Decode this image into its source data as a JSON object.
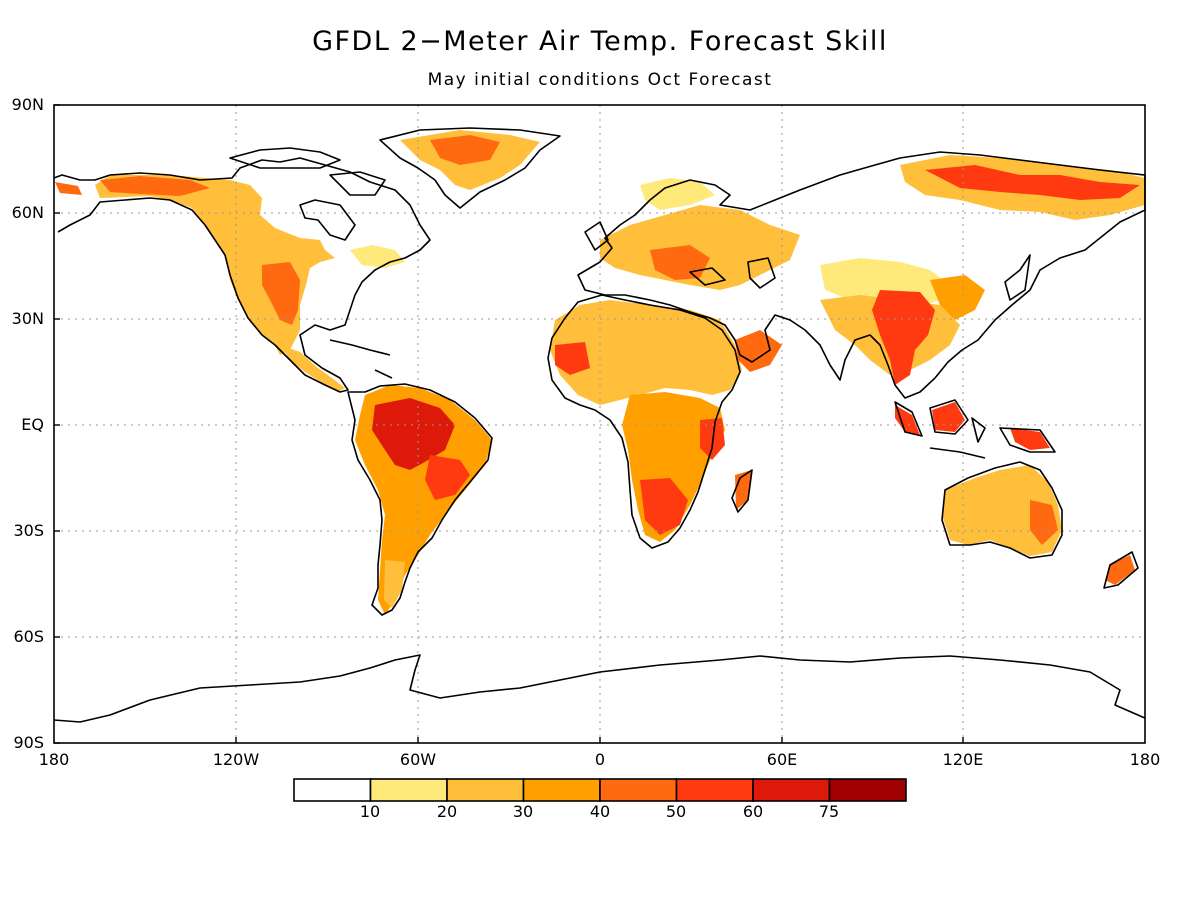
{
  "title": "GFDL 2−Meter Air Temp. Forecast Skill",
  "subtitle": "May initial conditions  Oct Forecast",
  "y_axis": {
    "ticks": [
      "90N",
      "60N",
      "30N",
      "EQ",
      "30S",
      "60S",
      "90S"
    ]
  },
  "x_axis": {
    "ticks": [
      "180",
      "120W",
      "60W",
      "0",
      "60E",
      "120E",
      "180"
    ]
  },
  "colorbar": {
    "labels": [
      "10",
      "20",
      "30",
      "40",
      "50",
      "60",
      "75"
    ],
    "colors": [
      "#ffffff",
      "#ffe97a",
      "#ffbf3a",
      "#ffa000",
      "#ff6a10",
      "#ff3a10",
      "#dd1a0a",
      "#a00000"
    ]
  },
  "grid": "dotted",
  "map_data": {
    "projection": "cylindrical equidistant",
    "extent": {
      "lon": [
        -180,
        180
      ],
      "lat": [
        -90,
        90
      ]
    },
    "variable": "2-meter air temperature forecast skill",
    "high_skill_regions": [
      "Amazon basin",
      "Southern Africa",
      "Indochina",
      "Indonesia",
      "Northern Siberia",
      "Southwestern United States",
      "Eastern Europe"
    ]
  }
}
